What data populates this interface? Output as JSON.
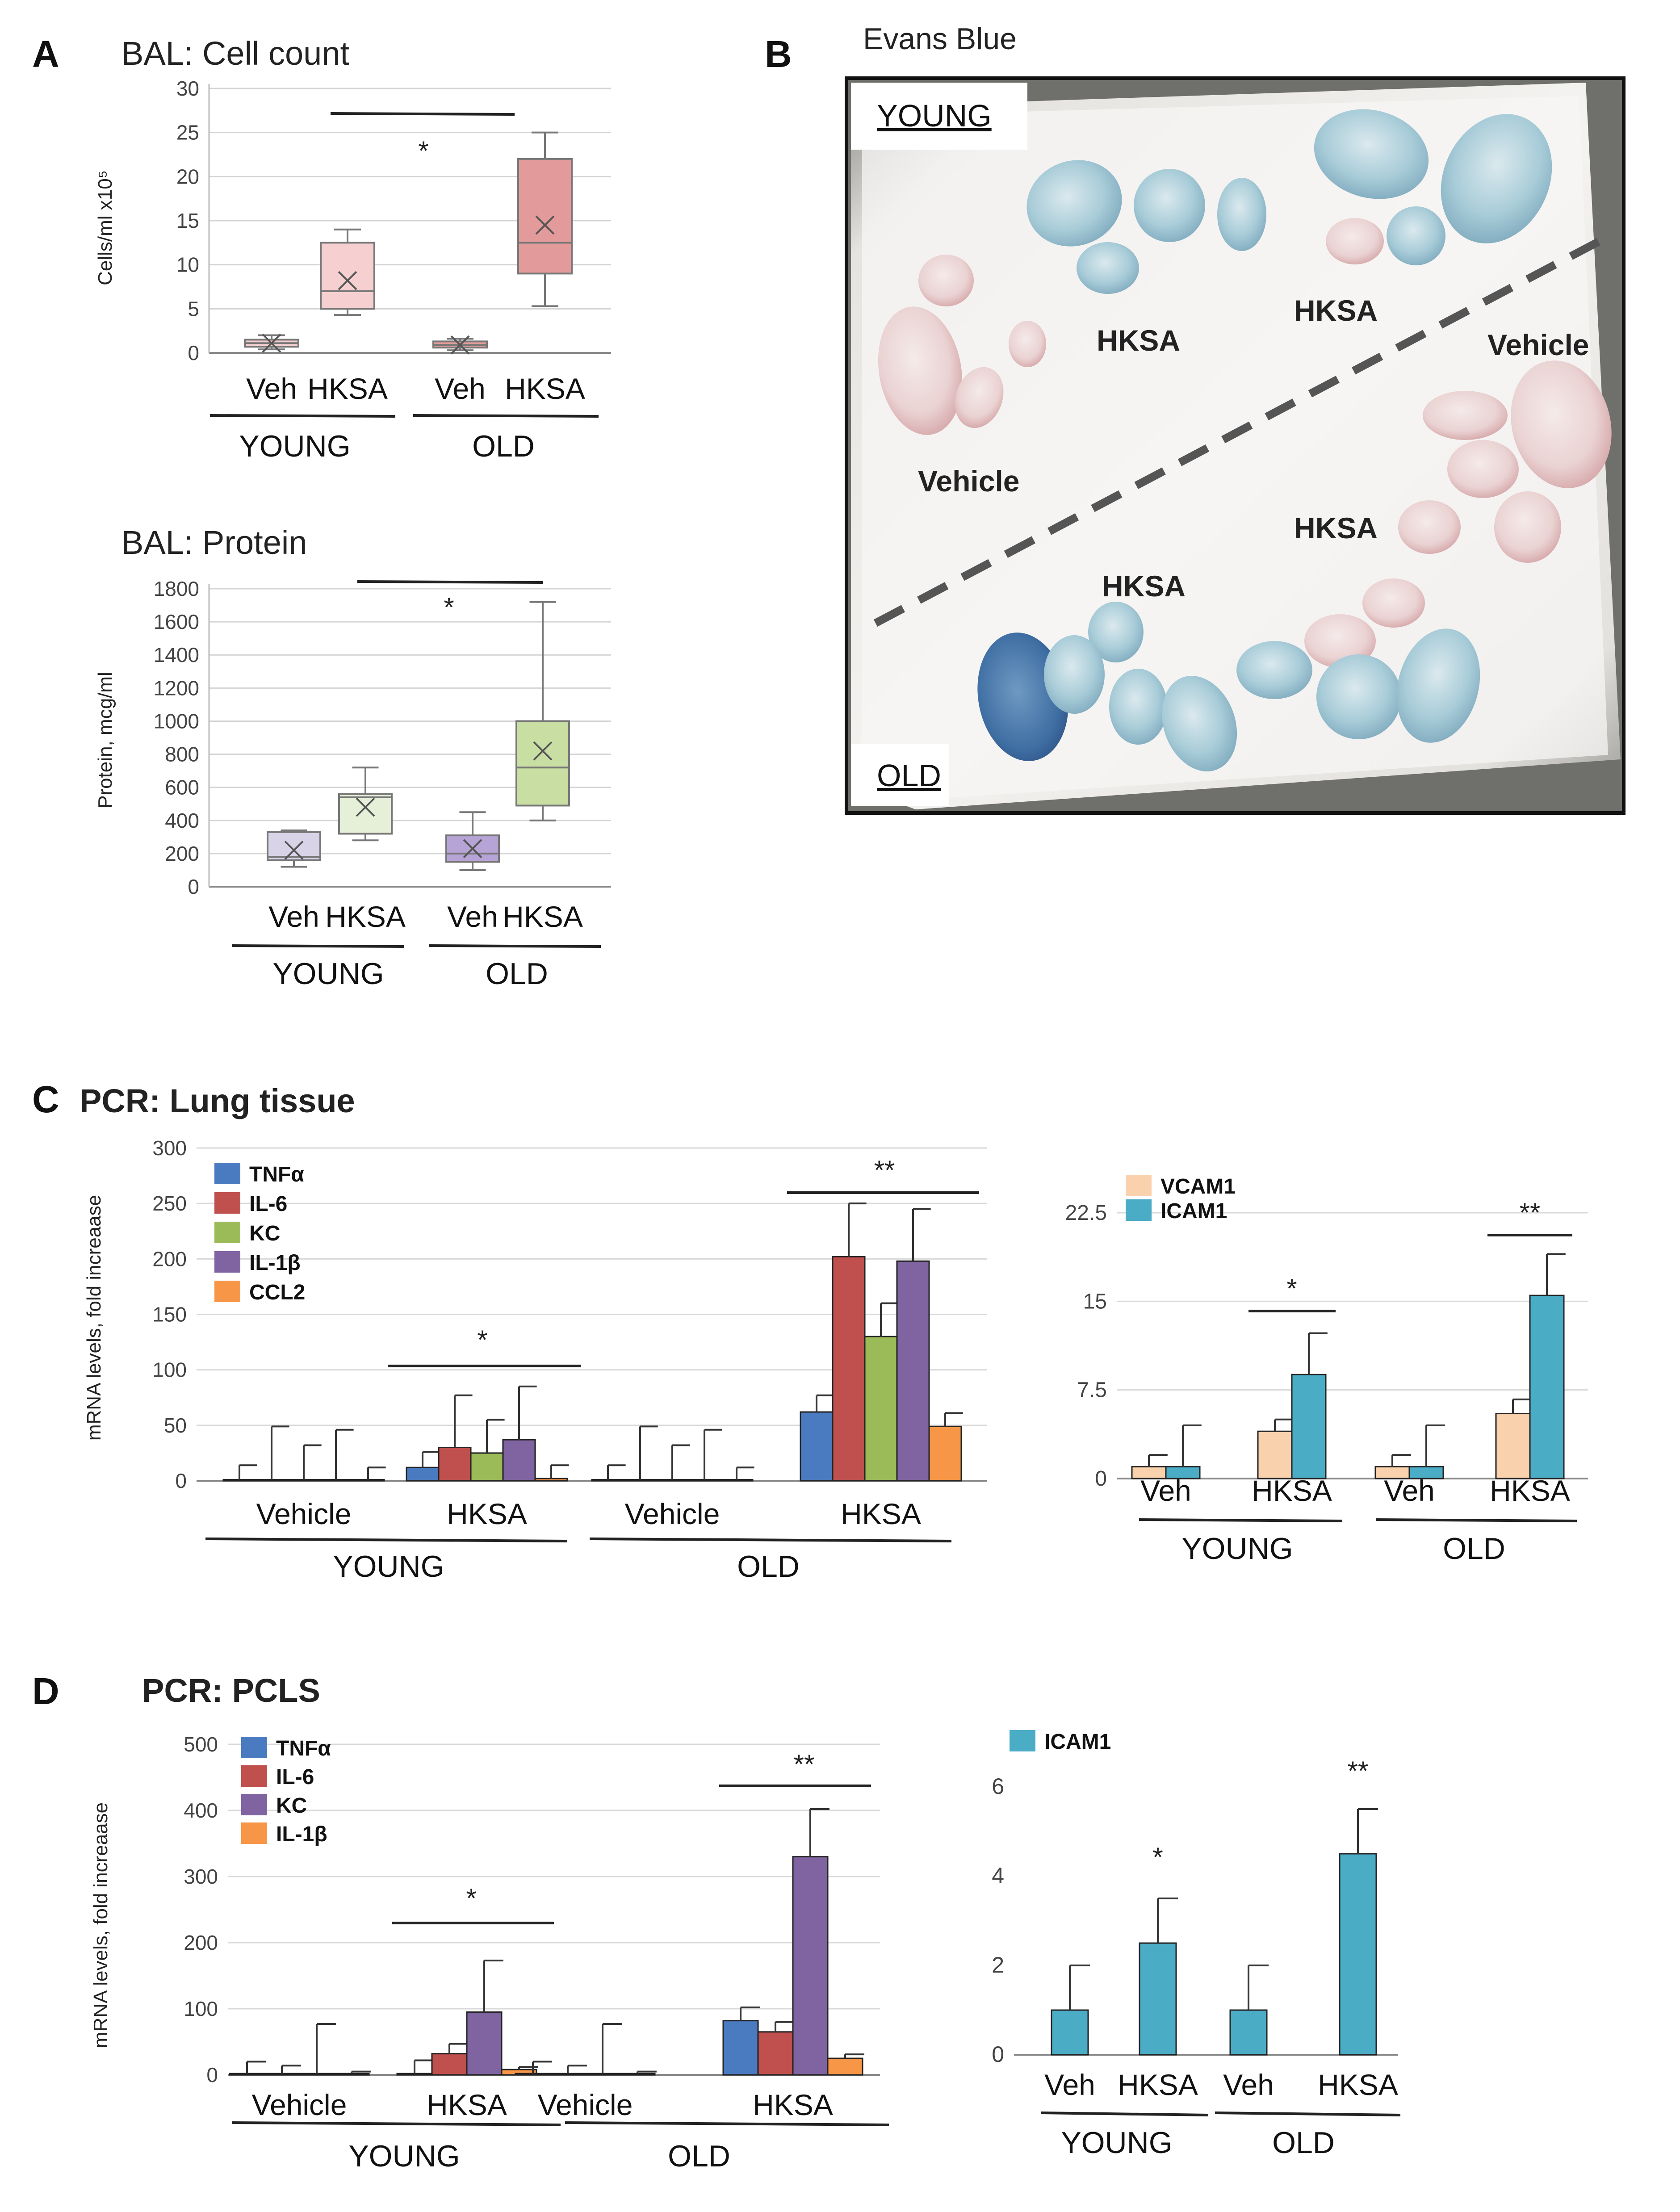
{
  "colors": {
    "TNF": "#4a7bc0",
    "IL6": "#c0504d",
    "KC": "#9bbb59",
    "IL1B": "#8064a2",
    "CCL2": "#f79646",
    "VCAM1": "#fad1ad",
    "ICAM1": "#4bacc6",
    "box_young_cell": "#f6d0d0",
    "box_old_cell": "#e39a9a",
    "box_young_prot_veh": "#d9d3e8",
    "box_young_prot_hksa": "#e6efd8",
    "box_old_prot_veh": "#b7a4d6",
    "box_old_prot_hksa": "#c9dea2"
  },
  "panels": {
    "A": {
      "letter": "A",
      "cell": {
        "title": "BAL: Cell count",
        "ylabel": "Cells/ml x10⁵",
        "star": "*",
        "groups": [
          "YOUNG",
          "OLD"
        ]
      },
      "protein": {
        "title": "BAL: Protein",
        "ylabel": "Protein, mcg/ml",
        "star": "*",
        "groups": [
          "YOUNG",
          "OLD"
        ]
      }
    },
    "B": {
      "letter": "B",
      "title": "Evans Blue",
      "label_young": "YOUNG",
      "label_old": "OLD",
      "lung_labels": [
        "HKSA",
        "HKSA",
        "Vehicle",
        "Vehicle",
        "HKSA",
        "HKSA"
      ]
    },
    "C": {
      "letter": "C",
      "title": "PCR: Lung tissue",
      "ylabel": "mRNA levels, fold increaase",
      "star_young": "*",
      "star_old": "**",
      "groups": [
        "YOUNG",
        "OLD"
      ],
      "right_stars": [
        "*",
        "**"
      ],
      "right_groups": [
        "YOUNG",
        "OLD"
      ]
    },
    "D": {
      "letter": "D",
      "title": "PCR: PCLS",
      "ylabel": "mRNA levels, fold increaase",
      "star_young": "*",
      "star_old": "**",
      "groups": [
        "YOUNG",
        "OLD"
      ],
      "right_stars": [
        "*",
        "**"
      ],
      "right_groups": [
        "YOUNG",
        "OLD"
      ]
    }
  },
  "chart_data": [
    {
      "id": "A1",
      "type": "box",
      "title": "BAL: Cell count",
      "ylabel": "Cells/ml x10⁵",
      "ylim": [
        0,
        30
      ],
      "yticks": [
        0,
        5,
        10,
        15,
        20,
        25,
        30
      ],
      "categories": [
        "Veh",
        "HKSA",
        "Veh",
        "HKSA"
      ],
      "boxes": [
        {
          "min": 0.4,
          "q1": 0.7,
          "median": 1.1,
          "q3": 1.5,
          "max": 2.0,
          "mean": 1.1
        },
        {
          "min": 4.3,
          "q1": 5.0,
          "median": 7.0,
          "q3": 12.5,
          "max": 14.0,
          "mean": 8.2
        },
        {
          "min": 0.3,
          "q1": 0.6,
          "median": 0.9,
          "q3": 1.3,
          "max": 1.6,
          "mean": 0.9
        },
        {
          "min": 5.3,
          "q1": 9.0,
          "median": 12.5,
          "q3": 22.0,
          "max": 25.0,
          "mean": 14.5
        }
      ]
    },
    {
      "id": "A2",
      "type": "box",
      "title": "BAL: Protein",
      "ylabel": "Protein, mcg/ml",
      "ylim": [
        0,
        1800
      ],
      "yticks": [
        0,
        200,
        400,
        600,
        800,
        1000,
        1200,
        1400,
        1600,
        1800
      ],
      "categories": [
        "Veh",
        "HKSA",
        "Veh",
        "HKSA"
      ],
      "boxes": [
        {
          "min": 120,
          "q1": 160,
          "median": 180,
          "q3": 330,
          "max": 340,
          "mean": 220
        },
        {
          "min": 280,
          "q1": 320,
          "median": 540,
          "q3": 560,
          "max": 720,
          "mean": 480
        },
        {
          "min": 100,
          "q1": 150,
          "median": 200,
          "q3": 310,
          "max": 450,
          "mean": 230
        },
        {
          "min": 400,
          "q1": 490,
          "median": 720,
          "q3": 1000,
          "max": 1720,
          "mean": 820
        }
      ]
    },
    {
      "id": "C1",
      "type": "bar",
      "title": "PCR: Lung tissue",
      "ylabel": "mRNA levels, fold increaase",
      "ylim": [
        0,
        300
      ],
      "yticks": [
        0,
        50,
        100,
        150,
        200,
        250,
        300
      ],
      "categories": [
        "Vehicle",
        "HKSA",
        "Vehicle",
        "HKSA"
      ],
      "series": [
        {
          "name": "TNFα",
          "color": "TNF",
          "values": [
            1,
            12,
            1,
            62
          ],
          "errors": [
            13,
            14,
            13,
            15
          ]
        },
        {
          "name": "IL-6",
          "color": "IL6",
          "values": [
            1,
            30,
            1,
            202
          ],
          "errors": [
            48,
            47,
            48,
            48
          ]
        },
        {
          "name": "KC",
          "color": "KC",
          "values": [
            1,
            25,
            1,
            130
          ],
          "errors": [
            31,
            30,
            31,
            30
          ]
        },
        {
          "name": "IL-1β",
          "color": "IL1B",
          "values": [
            1,
            37,
            1,
            198
          ],
          "errors": [
            45,
            48,
            45,
            47
          ]
        },
        {
          "name": "CCL2",
          "color": "CCL2",
          "values": [
            1,
            2,
            1,
            49
          ],
          "errors": [
            11,
            12,
            11,
            12
          ]
        }
      ]
    },
    {
      "id": "C2",
      "type": "bar",
      "ylim": [
        0,
        22.5
      ],
      "yticks": [
        0,
        7.5,
        15,
        22.5
      ],
      "categories": [
        "Veh",
        "HKSA",
        "Veh",
        "HKSA"
      ],
      "series": [
        {
          "name": "VCAM1",
          "color": "VCAM1",
          "values": [
            1,
            4,
            1,
            5.5
          ],
          "errors": [
            1,
            1,
            1,
            1.2
          ]
        },
        {
          "name": "ICAM1",
          "color": "ICAM1",
          "values": [
            1,
            8.8,
            1,
            15.5
          ],
          "errors": [
            3.5,
            3.5,
            3.5,
            3.5
          ]
        }
      ]
    },
    {
      "id": "D1",
      "type": "bar",
      "title": "PCR: PCLS",
      "ylabel": "mRNA levels, fold increaase",
      "ylim": [
        0,
        500
      ],
      "yticks": [
        0,
        100,
        200,
        300,
        400,
        500
      ],
      "categories": [
        "Vehicle",
        "HKSA",
        "Vehicle",
        "HKSA"
      ],
      "series": [
        {
          "name": "TNFα",
          "color": "TNF",
          "values": [
            2,
            2,
            2,
            82
          ],
          "errors": [
            18,
            20,
            18,
            20
          ]
        },
        {
          "name": "IL-6",
          "color": "IL6",
          "values": [
            2,
            32,
            2,
            65
          ],
          "errors": [
            12,
            15,
            12,
            15
          ]
        },
        {
          "name": "KC",
          "color": "IL1B",
          "values": [
            2,
            95,
            2,
            330
          ],
          "errors": [
            75,
            78,
            75,
            72
          ]
        },
        {
          "name": "IL-1β",
          "color": "CCL2",
          "values": [
            2,
            8,
            2,
            25
          ],
          "errors": [
            3,
            4,
            3,
            6
          ]
        }
      ]
    },
    {
      "id": "D2",
      "type": "bar",
      "ylim": [
        0,
        6
      ],
      "yticks": [
        0,
        2,
        4,
        6
      ],
      "categories": [
        "Veh",
        "HKSA",
        "Veh",
        "HKSA"
      ],
      "series": [
        {
          "name": "ICAM1",
          "color": "ICAM1",
          "values": [
            1,
            2.5,
            1,
            4.5
          ],
          "errors": [
            1,
            1,
            1,
            1
          ]
        }
      ]
    }
  ]
}
